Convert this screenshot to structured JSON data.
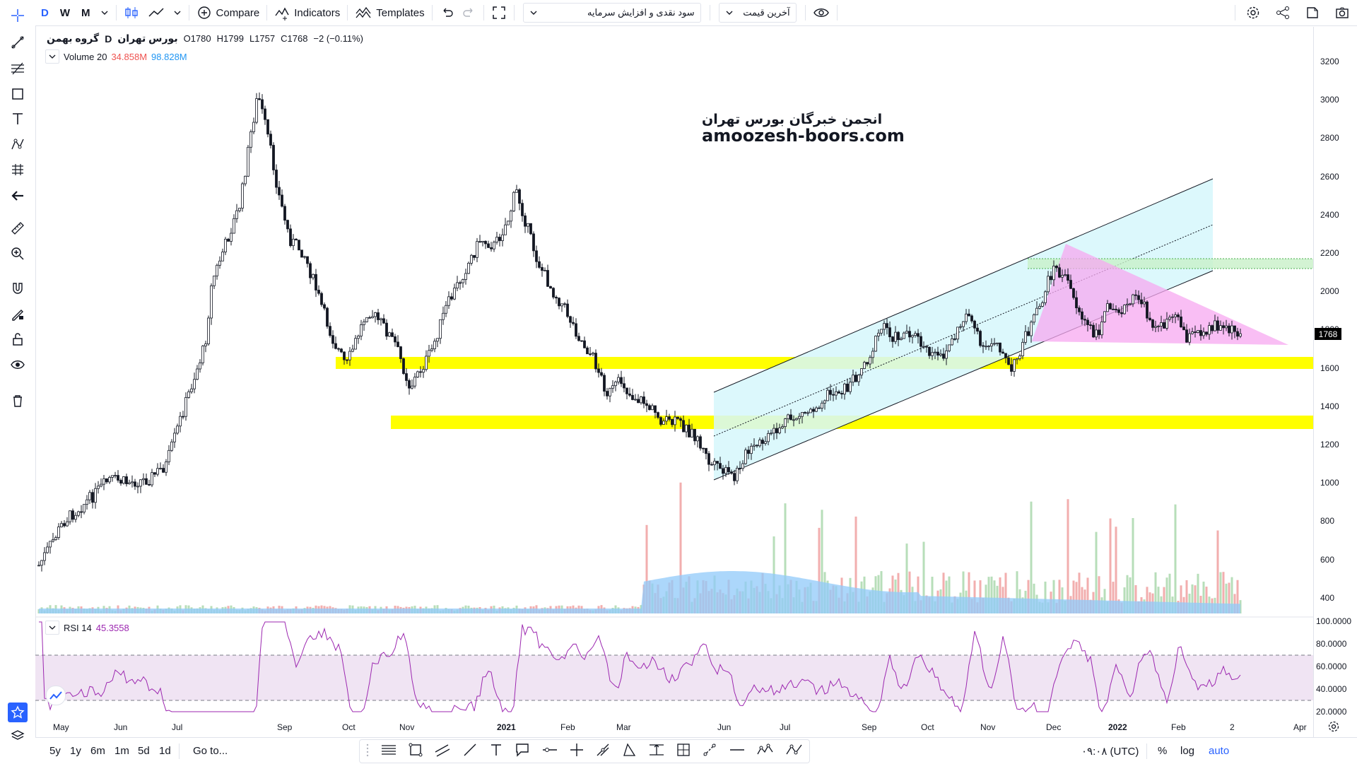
{
  "toolbar": {
    "resolutions": [
      "D",
      "W",
      "M"
    ],
    "compare_label": "Compare",
    "indicators_label": "Indicators",
    "templates_label": "Templates",
    "series_dropdown": "سود نقدی و افزایش سرمایه",
    "price_dropdown": "آخرین قیمت"
  },
  "legend": {
    "symbol": "گروه بهمن",
    "interval": "D",
    "exchange": "بورس تهران",
    "open": "O1780",
    "high": "H1799",
    "low": "L1757",
    "close": "C1768",
    "change": "−2 (−0.11%)",
    "volume_label": "Volume 20",
    "volume_value_1": "34.858M",
    "volume_value_2": "98.828M"
  },
  "rsi": {
    "label": "RSI 14",
    "value": "45.3558"
  },
  "watermark": {
    "line1": "انجمن خبرگان بورس تهران",
    "line2": "amoozesh-boors.com"
  },
  "price_axis": [
    "3200",
    "3000",
    "2800",
    "2600",
    "2400",
    "2200",
    "2000",
    "1800",
    "1600",
    "1400",
    "1200",
    "1000",
    "800",
    "600",
    "400"
  ],
  "current_price": "1768",
  "rsi_axis": [
    "100.0000",
    "80.0000",
    "60.0000",
    "40.0000",
    "20.0000"
  ],
  "time_axis": [
    "May",
    "Jun",
    "Jul",
    "Sep",
    "Oct",
    "Nov",
    "2021",
    "Feb",
    "Mar",
    "Jun",
    "Jul",
    "Sep",
    "Oct",
    "Nov",
    "Dec",
    "2022",
    "Feb",
    "2",
    "Apr"
  ],
  "bottom": {
    "ranges": [
      "5y",
      "1y",
      "6m",
      "1m",
      "5d",
      "1d"
    ],
    "goto": "Go to...",
    "clock": "۰۹:۰۸ (UTC)",
    "percent": "%",
    "log": "log",
    "auto": "auto"
  },
  "colors": {
    "accent": "#2962ff",
    "support_band": "#ffff00",
    "channel_fill": "#d6f7fb",
    "triangle_fill": "#f7a8f0",
    "rsi_line": "#9c27b0",
    "rsi_band": "#f0e4f3",
    "volume_up": "#a5d6a7",
    "volume_down": "#ef9a9a",
    "volume_ma": "#90caf9"
  },
  "icons": [
    "crosshair-icon",
    "trendline-icon",
    "fib-icon",
    "rectangle-icon",
    "text-icon",
    "pattern-icon",
    "prediction-icon",
    "back-arrow-icon",
    "ruler-icon",
    "zoom-icon",
    "magnet-icon",
    "lock-drawing-icon",
    "lock-icon",
    "eye-icon",
    "trash-icon",
    "star-icon",
    "layers-icon"
  ]
}
